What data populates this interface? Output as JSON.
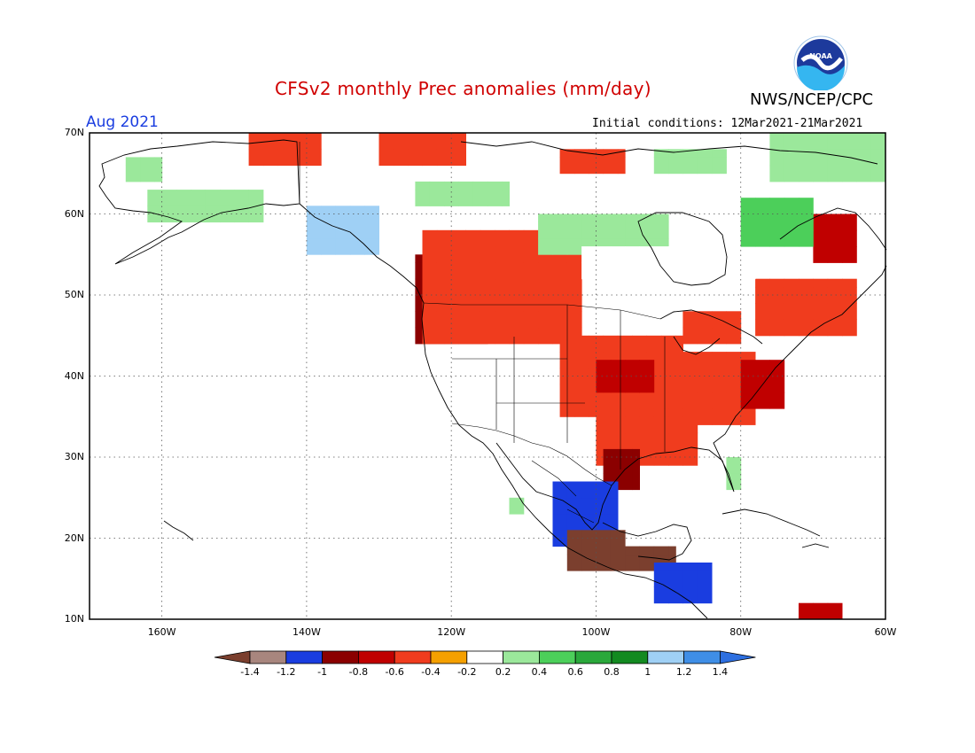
{
  "header": {
    "title": "CFSv2 monthly Prec anomalies (mm/day)",
    "agency": "NWS/NCEP/CPC",
    "month": "Aug 2021",
    "initial_conditions": "Initial conditions: 12Mar2021-21Mar2021",
    "logo_text": "NOAA"
  },
  "map": {
    "lon_range": [
      -170,
      -60
    ],
    "lat_range": [
      10,
      70
    ],
    "lat_ticks": [
      {
        "value": 70,
        "label": "70N"
      },
      {
        "value": 60,
        "label": "60N"
      },
      {
        "value": 50,
        "label": "50N"
      },
      {
        "value": 40,
        "label": "40N"
      },
      {
        "value": 30,
        "label": "30N"
      },
      {
        "value": 20,
        "label": "20N"
      },
      {
        "value": 10,
        "label": "10N"
      }
    ],
    "lon_ticks": [
      {
        "value": -160,
        "label": "160W"
      },
      {
        "value": -140,
        "label": "140W"
      },
      {
        "value": -120,
        "label": "120W"
      },
      {
        "value": -100,
        "label": "100W"
      },
      {
        "value": -80,
        "label": "80W"
      },
      {
        "value": -60,
        "label": "60W"
      }
    ],
    "anomaly_regions": [
      {
        "name": "pacific-northwest-dry",
        "level": -0.8,
        "lon": [
          -125,
          -115
        ],
        "lat": [
          44,
          55
        ]
      },
      {
        "name": "canadian-prairies-dry",
        "level": -0.6,
        "lon": [
          -118,
          -104
        ],
        "lat": [
          48,
          53
        ]
      },
      {
        "name": "northern-rockies-dry",
        "level": -0.4,
        "lon": [
          -124,
          -102
        ],
        "lat": [
          44,
          58
        ]
      },
      {
        "name": "alaska-north-dry",
        "level": -0.4,
        "lon": [
          -148,
          -138
        ],
        "lat": [
          66,
          70
        ]
      },
      {
        "name": "yukon-dry",
        "level": -0.4,
        "lon": [
          -130,
          -118
        ],
        "lat": [
          66,
          70
        ]
      },
      {
        "name": "arctic-canada-dry",
        "level": -0.4,
        "lon": [
          -105,
          -96
        ],
        "lat": [
          65,
          68
        ]
      },
      {
        "name": "midwest-dry",
        "level": -0.4,
        "lon": [
          -105,
          -88
        ],
        "lat": [
          35,
          45
        ]
      },
      {
        "name": "kansas-dry",
        "level": -0.6,
        "lon": [
          -100,
          -92
        ],
        "lat": [
          38,
          42
        ]
      },
      {
        "name": "ohio-valley-dry",
        "level": -0.4,
        "lon": [
          -90,
          -78
        ],
        "lat": [
          34,
          43
        ]
      },
      {
        "name": "mid-atlantic-dry",
        "level": -0.6,
        "lon": [
          -80,
          -74
        ],
        "lat": [
          36,
          42
        ]
      },
      {
        "name": "great-lakes-dry",
        "level": -0.4,
        "lon": [
          -88,
          -80
        ],
        "lat": [
          44,
          48
        ]
      },
      {
        "name": "quebec-dry",
        "level": -0.4,
        "lon": [
          -78,
          -64
        ],
        "lat": [
          45,
          52
        ]
      },
      {
        "name": "labrador-dry",
        "level": -0.6,
        "lon": [
          -70,
          -64
        ],
        "lat": [
          54,
          60
        ]
      },
      {
        "name": "texas-dry",
        "level": -0.4,
        "lon": [
          -100,
          -86
        ],
        "lat": [
          29,
          36
        ]
      },
      {
        "name": "gulf-coast-dry",
        "level": -0.8,
        "lon": [
          -99,
          -94
        ],
        "lat": [
          26,
          31
        ]
      },
      {
        "name": "mexico-east-dry",
        "level": -1.0,
        "lon": [
          -106,
          -97
        ],
        "lat": [
          19,
          27
        ]
      },
      {
        "name": "mexico-south-dry",
        "level": -1.4,
        "lon": [
          -104,
          -96
        ],
        "lat": [
          16,
          21
        ]
      },
      {
        "name": "yucatan-dry",
        "level": -1.4,
        "lon": [
          -96,
          -89
        ],
        "lat": [
          16,
          19
        ]
      },
      {
        "name": "central-america-dry",
        "level": -1.0,
        "lon": [
          -92,
          -84
        ],
        "lat": [
          12,
          17
        ]
      },
      {
        "name": "caribbean-dry",
        "level": -0.6,
        "lon": [
          -72,
          -66
        ],
        "lat": [
          10,
          12
        ]
      },
      {
        "name": "alaska-south-wet",
        "level": 0.4,
        "lon": [
          -162,
          -146
        ],
        "lat": [
          59,
          63
        ]
      },
      {
        "name": "alaska-west-wet",
        "level": 0.4,
        "lon": [
          -165,
          -160
        ],
        "lat": [
          64,
          67
        ]
      },
      {
        "name": "gulf-of-alaska-wet",
        "level": 1.2,
        "lon": [
          -140,
          -130
        ],
        "lat": [
          55,
          61
        ]
      },
      {
        "name": "northwest-territories-wet",
        "level": 0.4,
        "lon": [
          -125,
          -112
        ],
        "lat": [
          61,
          64
        ]
      },
      {
        "name": "hudson-bay-west-wet",
        "level": 0.4,
        "lon": [
          -108,
          -90
        ],
        "lat": [
          55,
          60
        ]
      },
      {
        "name": "manitoba-wet",
        "level": 0.2,
        "lon": [
          -102,
          -86
        ],
        "lat": [
          52,
          56
        ]
      },
      {
        "name": "ontario-north-wet",
        "level": 0.2,
        "lon": [
          -86,
          -78
        ],
        "lat": [
          52,
          54
        ]
      },
      {
        "name": "nunavik-wet",
        "level": 0.6,
        "lon": [
          -80,
          -70
        ],
        "lat": [
          56,
          62
        ]
      },
      {
        "name": "baffin-wet",
        "level": 0.4,
        "lon": [
          -76,
          -60
        ],
        "lat": [
          64,
          70
        ]
      },
      {
        "name": "arctic-islands-wet",
        "level": 0.4,
        "lon": [
          -92,
          -82
        ],
        "lat": [
          65,
          68
        ]
      },
      {
        "name": "florida-wet",
        "level": 0.4,
        "lon": [
          -82,
          -80
        ],
        "lat": [
          26,
          30
        ]
      },
      {
        "name": "baja-wet",
        "level": 0.4,
        "lon": [
          -112,
          -110
        ],
        "lat": [
          23,
          25
        ]
      }
    ],
    "hawaii_label": ""
  },
  "colorbar": {
    "levels": [
      "-1.4",
      "-1.2",
      "-1",
      "-0.8",
      "-0.6",
      "-0.4",
      "-0.2",
      "0.2",
      "0.4",
      "0.6",
      "0.8",
      "1",
      "1.2",
      "1.4"
    ],
    "colors": [
      "#7b3f2e",
      "#a8867e",
      "#1a3de0",
      "#8b0000",
      "#c00000",
      "#f03c1e",
      "#f5a000",
      "#ffffff",
      "#9be89b",
      "#4ccf5a",
      "#2aa83b",
      "#138a20",
      "#9fd0f5",
      "#3f8ee6",
      "#2d6fe0"
    ]
  }
}
